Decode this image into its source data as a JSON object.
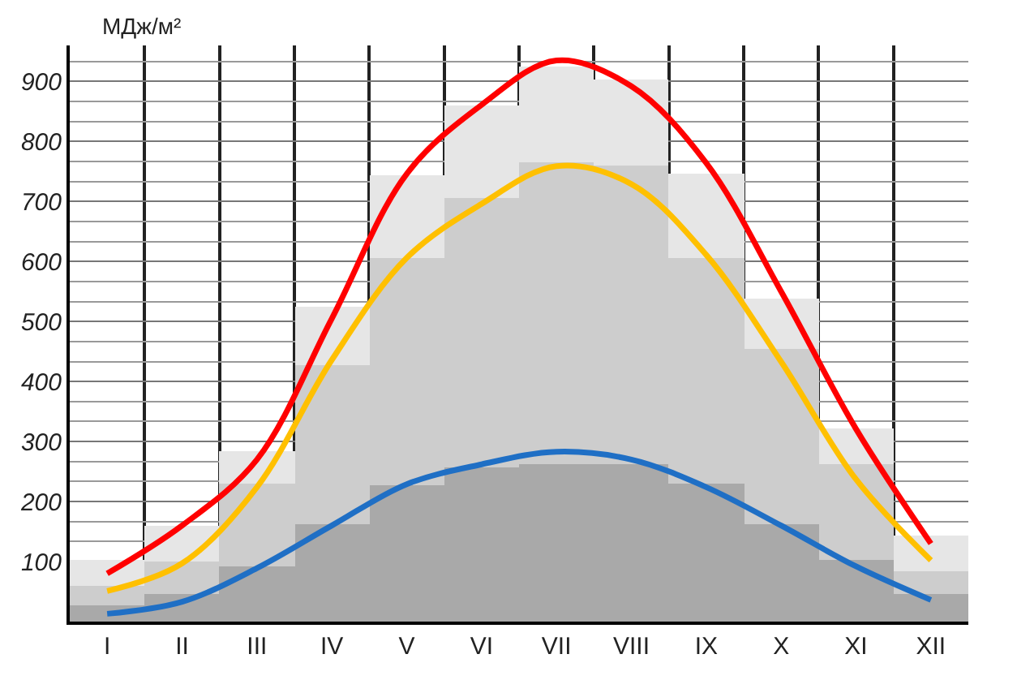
{
  "chart_data": {
    "type": "bar",
    "ylabel": "МДж/м²",
    "stacked": true,
    "categories": [
      "I",
      "II",
      "III",
      "IV",
      "V",
      "VI",
      "VII",
      "VIII",
      "IX",
      "X",
      "XI",
      "XII"
    ],
    "ylim": [
      0,
      960
    ],
    "yticks": [
      100,
      200,
      300,
      400,
      500,
      600,
      700,
      800,
      900
    ],
    "grid": true,
    "series": [
      {
        "color": "#a9a9a9",
        "values": [
          28,
          46,
          92,
          163,
          227,
          257,
          262,
          262,
          229,
          163,
          102,
          46
        ]
      },
      {
        "color": "#cdcdcd",
        "values": [
          32,
          54,
          137,
          265,
          379,
          449,
          502,
          498,
          377,
          290,
          160,
          38
        ]
      },
      {
        "color": "#e6e6e6",
        "values": [
          42,
          60,
          56,
          97,
          138,
          155,
          161,
          142,
          140,
          85,
          59,
          59
        ]
      },
      {
        "type": "line",
        "color": "#ff0000",
        "values": [
          80,
          160,
          270,
          505,
          746,
          861,
          935,
          892,
          764,
          550,
          321,
          130
        ]
      },
      {
        "type": "line",
        "color": "#ffc000",
        "values": [
          51,
          97,
          224,
          436,
          606,
          696,
          759,
          729,
          611,
          433,
          237,
          102
        ]
      },
      {
        "type": "line",
        "color": "#1f6fc5",
        "values": [
          13,
          33,
          89,
          160,
          229,
          262,
          283,
          270,
          224,
          160,
          92,
          36
        ]
      }
    ]
  }
}
